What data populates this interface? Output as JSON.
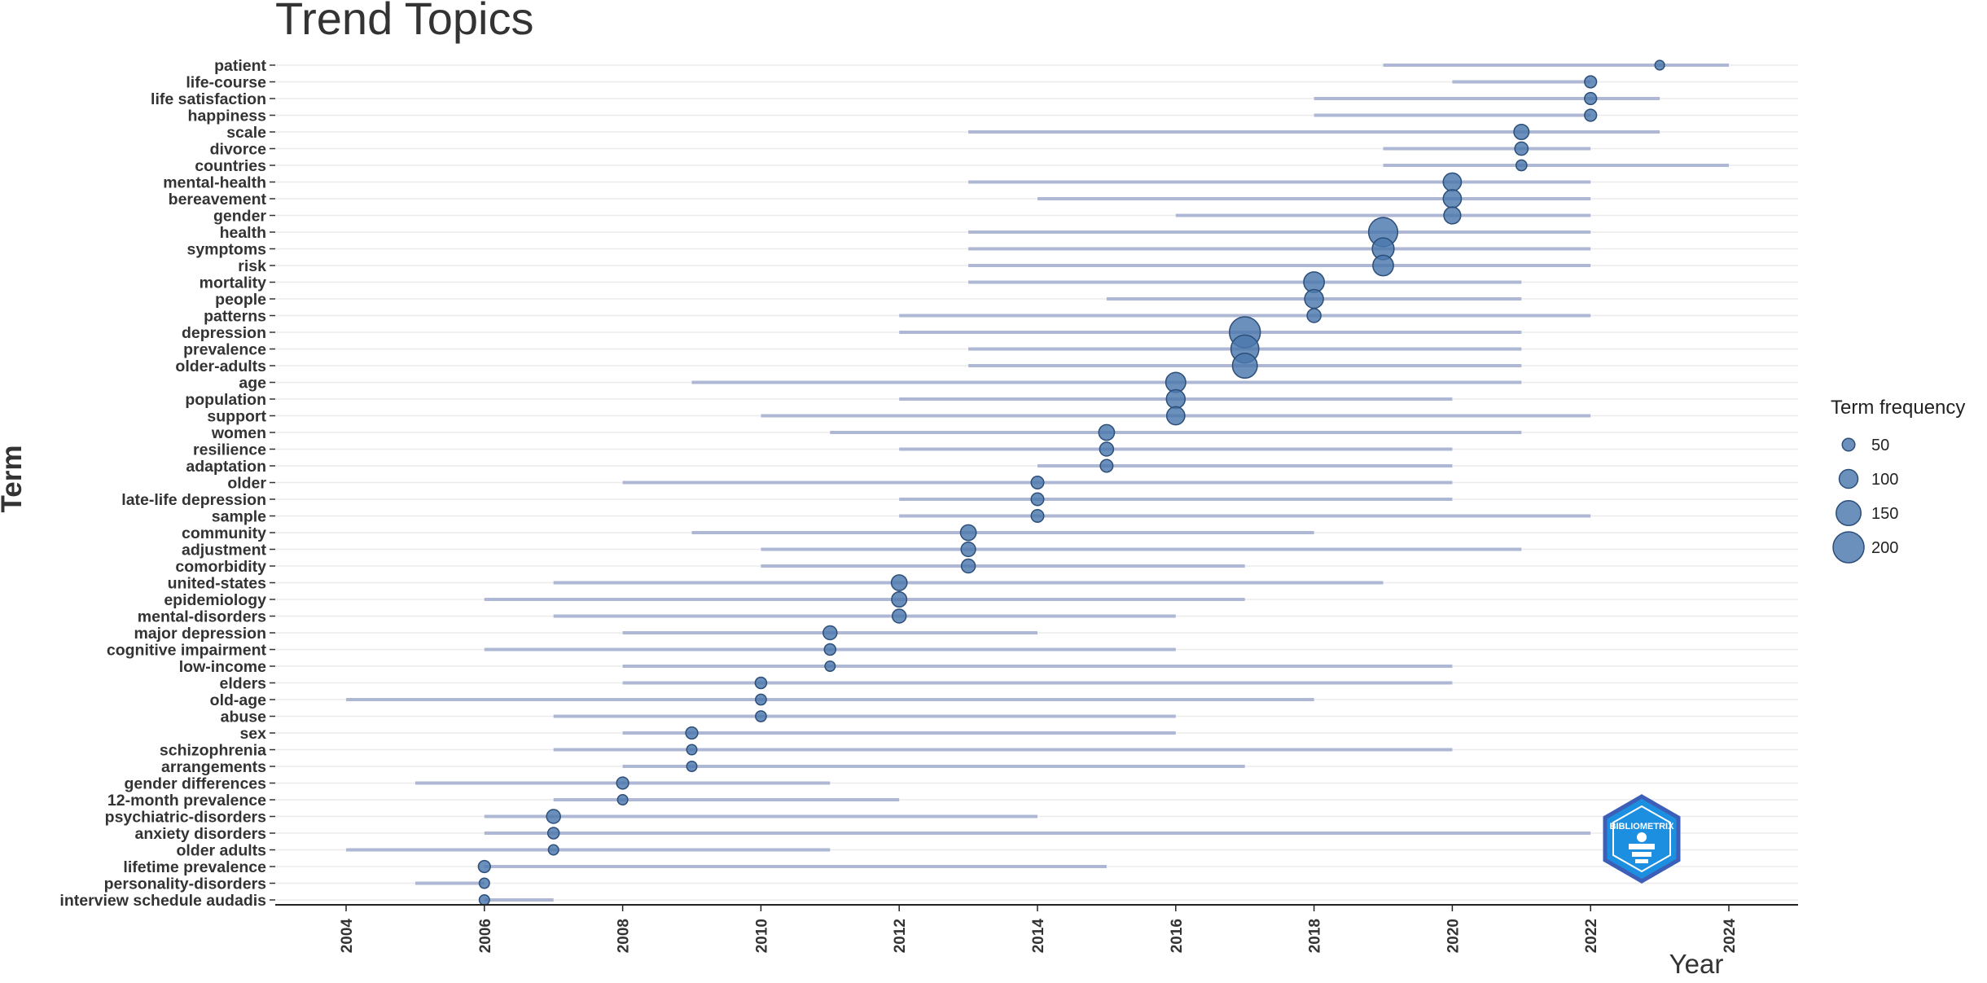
{
  "chart_data": {
    "type": "scatter",
    "title": "Trend Topics",
    "xlabel": "Year",
    "ylabel": "Term",
    "xlim": [
      2003,
      2025
    ],
    "x_ticks": [
      2004,
      2006,
      2008,
      2010,
      2012,
      2014,
      2016,
      2018,
      2020,
      2022,
      2024
    ],
    "grid": "horizontal",
    "legend": {
      "title": "Term frequency",
      "position": "right",
      "entries": [
        {
          "label": "50",
          "value": 50
        },
        {
          "label": "100",
          "value": 100
        },
        {
          "label": "150",
          "value": 150
        },
        {
          "label": "200",
          "value": 200
        }
      ]
    },
    "colors": {
      "point_fill": "#4a77ad",
      "point_stroke": "#2c4e78",
      "range_line": "#aeb8d4",
      "grid": "#ebebeb",
      "axis": "#222222"
    },
    "terms": [
      {
        "term": "patient",
        "start": 2019,
        "median": 2023,
        "end": 2024,
        "freq": 25
      },
      {
        "term": "life-course",
        "start": 2020,
        "median": 2022,
        "end": 2022,
        "freq": 45
      },
      {
        "term": "life satisfaction",
        "start": 2018,
        "median": 2022,
        "end": 2023,
        "freq": 45
      },
      {
        "term": "happiness",
        "start": 2018,
        "median": 2022,
        "end": 2022,
        "freq": 45
      },
      {
        "term": "scale",
        "start": 2013,
        "median": 2021,
        "end": 2023,
        "freq": 70
      },
      {
        "term": "divorce",
        "start": 2019,
        "median": 2021,
        "end": 2022,
        "freq": 55
      },
      {
        "term": "countries",
        "start": 2019,
        "median": 2021,
        "end": 2024,
        "freq": 35
      },
      {
        "term": "mental-health",
        "start": 2013,
        "median": 2020,
        "end": 2022,
        "freq": 95
      },
      {
        "term": "bereavement",
        "start": 2014,
        "median": 2020,
        "end": 2022,
        "freq": 95
      },
      {
        "term": "gender",
        "start": 2016,
        "median": 2020,
        "end": 2022,
        "freq": 85
      },
      {
        "term": "health",
        "start": 2013,
        "median": 2019,
        "end": 2022,
        "freq": 185
      },
      {
        "term": "symptoms",
        "start": 2013,
        "median": 2019,
        "end": 2022,
        "freq": 125
      },
      {
        "term": "risk",
        "start": 2013,
        "median": 2019,
        "end": 2022,
        "freq": 115
      },
      {
        "term": "mortality",
        "start": 2013,
        "median": 2018,
        "end": 2021,
        "freq": 115
      },
      {
        "term": "people",
        "start": 2015,
        "median": 2018,
        "end": 2021,
        "freq": 100
      },
      {
        "term": "patterns",
        "start": 2012,
        "median": 2018,
        "end": 2022,
        "freq": 60
      },
      {
        "term": "depression",
        "start": 2012,
        "median": 2017,
        "end": 2021,
        "freq": 200
      },
      {
        "term": "prevalence",
        "start": 2013,
        "median": 2017,
        "end": 2021,
        "freq": 175
      },
      {
        "term": "older-adults",
        "start": 2013,
        "median": 2017,
        "end": 2021,
        "freq": 150
      },
      {
        "term": "age",
        "start": 2009,
        "median": 2016,
        "end": 2021,
        "freq": 110
      },
      {
        "term": "population",
        "start": 2012,
        "median": 2016,
        "end": 2020,
        "freq": 100
      },
      {
        "term": "support",
        "start": 2010,
        "median": 2016,
        "end": 2022,
        "freq": 95
      },
      {
        "term": "women",
        "start": 2011,
        "median": 2015,
        "end": 2021,
        "freq": 75
      },
      {
        "term": "resilience",
        "start": 2012,
        "median": 2015,
        "end": 2020,
        "freq": 60
      },
      {
        "term": "adaptation",
        "start": 2014,
        "median": 2015,
        "end": 2020,
        "freq": 50
      },
      {
        "term": "older",
        "start": 2008,
        "median": 2014,
        "end": 2020,
        "freq": 50
      },
      {
        "term": "late-life depression",
        "start": 2012,
        "median": 2014,
        "end": 2020,
        "freq": 50
      },
      {
        "term": "sample",
        "start": 2012,
        "median": 2014,
        "end": 2022,
        "freq": 50
      },
      {
        "term": "community",
        "start": 2009,
        "median": 2013,
        "end": 2018,
        "freq": 75
      },
      {
        "term": "adjustment",
        "start": 2010,
        "median": 2013,
        "end": 2021,
        "freq": 65
      },
      {
        "term": "comorbidity",
        "start": 2010,
        "median": 2013,
        "end": 2017,
        "freq": 60
      },
      {
        "term": "united-states",
        "start": 2007,
        "median": 2012,
        "end": 2019,
        "freq": 75
      },
      {
        "term": "epidemiology",
        "start": 2006,
        "median": 2012,
        "end": 2017,
        "freq": 70
      },
      {
        "term": "mental-disorders",
        "start": 2007,
        "median": 2012,
        "end": 2016,
        "freq": 60
      },
      {
        "term": "major depression",
        "start": 2008,
        "median": 2011,
        "end": 2014,
        "freq": 60
      },
      {
        "term": "cognitive impairment",
        "start": 2006,
        "median": 2011,
        "end": 2016,
        "freq": 40
      },
      {
        "term": "low-income",
        "start": 2008,
        "median": 2011,
        "end": 2020,
        "freq": 30
      },
      {
        "term": "elders",
        "start": 2008,
        "median": 2010,
        "end": 2020,
        "freq": 40
      },
      {
        "term": "old-age",
        "start": 2004,
        "median": 2010,
        "end": 2018,
        "freq": 35
      },
      {
        "term": "abuse",
        "start": 2007,
        "median": 2010,
        "end": 2016,
        "freq": 35
      },
      {
        "term": "sex",
        "start": 2008,
        "median": 2009,
        "end": 2016,
        "freq": 45
      },
      {
        "term": "schizophrenia",
        "start": 2007,
        "median": 2009,
        "end": 2020,
        "freq": 30
      },
      {
        "term": "arrangements",
        "start": 2008,
        "median": 2009,
        "end": 2017,
        "freq": 30
      },
      {
        "term": "gender differences",
        "start": 2005,
        "median": 2008,
        "end": 2011,
        "freq": 45
      },
      {
        "term": "12-month prevalence",
        "start": 2007,
        "median": 2008,
        "end": 2012,
        "freq": 30
      },
      {
        "term": "psychiatric-disorders",
        "start": 2006,
        "median": 2007,
        "end": 2014,
        "freq": 60
      },
      {
        "term": "anxiety disorders",
        "start": 2006,
        "median": 2007,
        "end": 2022,
        "freq": 40
      },
      {
        "term": "older adults",
        "start": 2004,
        "median": 2007,
        "end": 2011,
        "freq": 30
      },
      {
        "term": "lifetime prevalence",
        "start": 2006,
        "median": 2006,
        "end": 2015,
        "freq": 45
      },
      {
        "term": "personality-disorders",
        "start": 2005,
        "median": 2006,
        "end": 2006,
        "freq": 30
      },
      {
        "term": "interview schedule audadis",
        "start": 2006,
        "median": 2006,
        "end": 2007,
        "freq": 30
      }
    ]
  },
  "logo": {
    "text": "BIBLIOMETRIX"
  }
}
